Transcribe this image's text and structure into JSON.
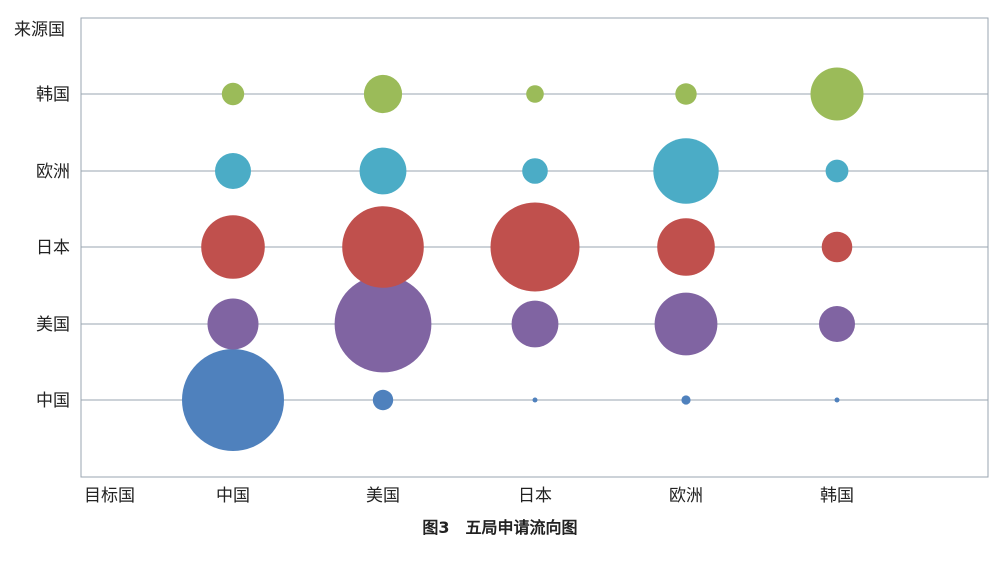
{
  "caption": "图3　五局申请流向图",
  "chart_data": {
    "type": "bubble",
    "title": "图3　五局申请流向图",
    "x_axis_label": "目标国",
    "y_axis_label": "来源国",
    "x_categories": [
      "中国",
      "美国",
      "日本",
      "欧洲",
      "韩国"
    ],
    "y_categories": [
      "中国",
      "美国",
      "日本",
      "欧洲",
      "韩国"
    ],
    "grid": "horizontal",
    "legend": "none",
    "series": [
      {
        "colour": "#4f81bd",
        "points": [
          {
            "x": "中国",
            "y": "中国",
            "size": 100
          },
          {
            "x": "美国",
            "y": "中国",
            "size": 4
          },
          {
            "x": "日本",
            "y": "中国",
            "size": 0.2
          },
          {
            "x": "欧洲",
            "y": "中国",
            "size": 0.8
          },
          {
            "x": "韩国",
            "y": "中国",
            "size": 0.2
          }
        ]
      },
      {
        "colour": "#8064a2",
        "points": [
          {
            "x": "中国",
            "y": "美国",
            "size": 25
          },
          {
            "x": "美国",
            "y": "美国",
            "size": 90
          },
          {
            "x": "日本",
            "y": "美国",
            "size": 21
          },
          {
            "x": "欧洲",
            "y": "美国",
            "size": 38
          },
          {
            "x": "韩国",
            "y": "美国",
            "size": 12.5
          }
        ]
      },
      {
        "colour": "#c0504d",
        "points": [
          {
            "x": "中国",
            "y": "日本",
            "size": 39
          },
          {
            "x": "美国",
            "y": "日本",
            "size": 64
          },
          {
            "x": "日本",
            "y": "日本",
            "size": 76
          },
          {
            "x": "欧洲",
            "y": "日本",
            "size": 32
          },
          {
            "x": "韩国",
            "y": "日本",
            "size": 9
          }
        ]
      },
      {
        "colour": "#4bacc6",
        "points": [
          {
            "x": "中国",
            "y": "欧洲",
            "size": 12.5
          },
          {
            "x": "美国",
            "y": "欧洲",
            "size": 21
          },
          {
            "x": "日本",
            "y": "欧洲",
            "size": 6.3
          },
          {
            "x": "欧洲",
            "y": "欧洲",
            "size": 41
          },
          {
            "x": "韩国",
            "y": "欧洲",
            "size": 5
          }
        ]
      },
      {
        "colour": "#9bbb59",
        "points": [
          {
            "x": "中国",
            "y": "韩国",
            "size": 4.8
          },
          {
            "x": "美国",
            "y": "韩国",
            "size": 14
          },
          {
            "x": "日本",
            "y": "韩国",
            "size": 3
          },
          {
            "x": "欧洲",
            "y": "韩国",
            "size": 4.4
          },
          {
            "x": "韩国",
            "y": "韩国",
            "size": 27
          }
        ]
      }
    ]
  }
}
